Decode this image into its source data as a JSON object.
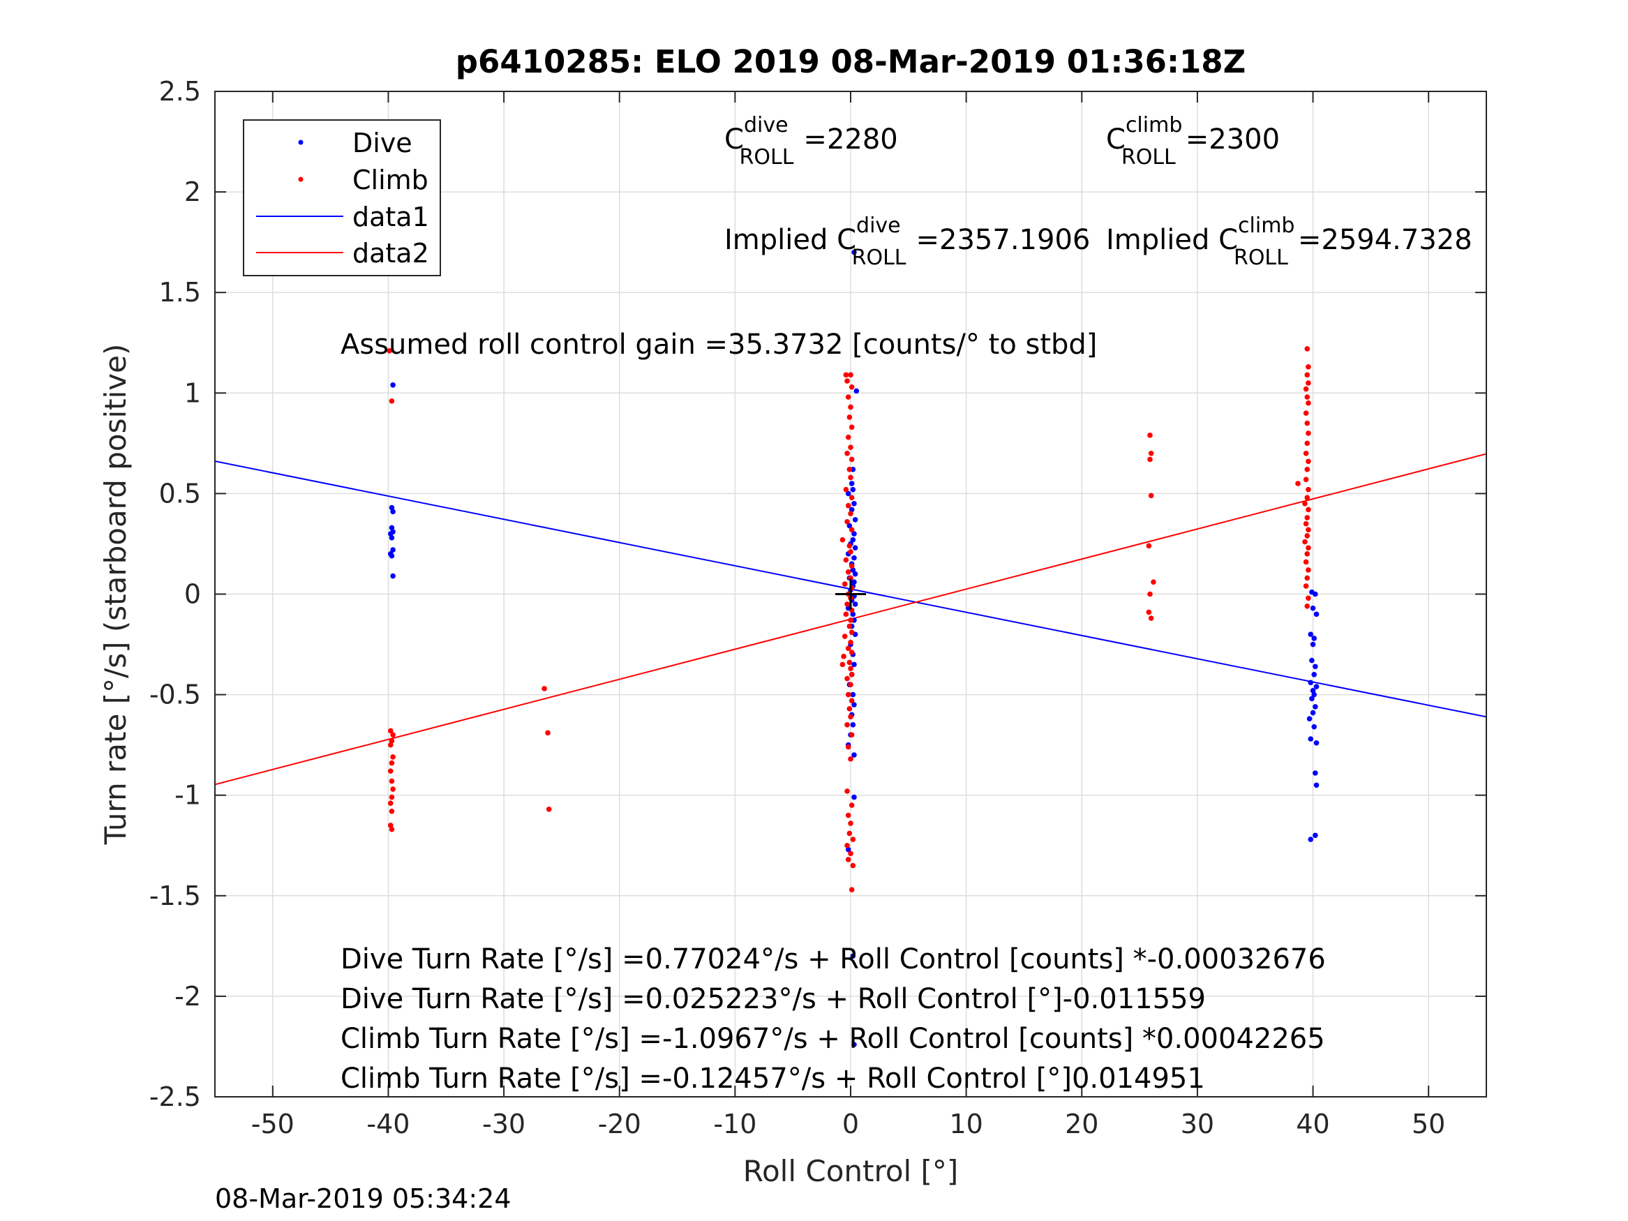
{
  "chart_data": {
    "type": "scatter",
    "title": "p6410285: ELO 2019 08-Mar-2019 01:36:18Z",
    "xlabel": "Roll Control [°]",
    "ylabel": "Turn rate [°/s] (starboard positive)",
    "xlim": [
      -55,
      55
    ],
    "ylim": [
      -2.5,
      2.5
    ],
    "xticks": [
      -50,
      -40,
      -30,
      -20,
      -10,
      0,
      10,
      20,
      30,
      40,
      50
    ],
    "yticks": [
      -2.5,
      -2,
      -1.5,
      -1,
      -0.5,
      0,
      0.5,
      1,
      1.5,
      2,
      2.5
    ],
    "xtick_labels": [
      "-50",
      "-40",
      "-30",
      "-20",
      "-10",
      "0",
      "10",
      "20",
      "30",
      "40",
      "50"
    ],
    "ytick_labels": [
      "-2.5",
      "-2",
      "-1.5",
      "-1",
      "-0.5",
      "0",
      "0.5",
      "1",
      "1.5",
      "2",
      "2.5"
    ],
    "grid": true,
    "legend_position": "top-left",
    "legend": [
      "Dive",
      "Climb",
      "data1",
      "data2"
    ],
    "colors": {
      "dive": "#0000ff",
      "climb": "#ff0000",
      "axes": "#262626",
      "grid": "#dddddd"
    },
    "series": [
      {
        "name": "Dive",
        "kind": "points",
        "color": "#0000ff",
        "points": [
          [
            -39.6,
            1.04
          ],
          [
            -39.7,
            0.43
          ],
          [
            -39.6,
            0.41
          ],
          [
            -39.7,
            0.33
          ],
          [
            -39.6,
            0.31
          ],
          [
            -39.8,
            0.3
          ],
          [
            -39.7,
            0.28
          ],
          [
            -39.6,
            0.22
          ],
          [
            -39.8,
            0.2
          ],
          [
            -39.7,
            0.19
          ],
          [
            -39.6,
            0.09
          ],
          [
            0.3,
            1.7
          ],
          [
            0.5,
            1.01
          ],
          [
            0.2,
            0.62
          ],
          [
            0.1,
            0.55
          ],
          [
            0.2,
            0.52
          ],
          [
            -0.2,
            0.5
          ],
          [
            0.3,
            0.45
          ],
          [
            0.1,
            0.42
          ],
          [
            0.4,
            0.37
          ],
          [
            -0.1,
            0.34
          ],
          [
            0.3,
            0.3
          ],
          [
            0.2,
            0.27
          ],
          [
            0.0,
            0.25
          ],
          [
            0.4,
            0.23
          ],
          [
            -0.2,
            0.2
          ],
          [
            0.3,
            0.18
          ],
          [
            0.1,
            0.15
          ],
          [
            0.2,
            0.12
          ],
          [
            0.4,
            0.1
          ],
          [
            -0.1,
            0.08
          ],
          [
            0.3,
            0.06
          ],
          [
            0.2,
            0.04
          ],
          [
            0.0,
            0.02
          ],
          [
            0.3,
            -0.01
          ],
          [
            0.1,
            -0.03
          ],
          [
            0.4,
            -0.05
          ],
          [
            -0.2,
            -0.07
          ],
          [
            0.2,
            -0.1
          ],
          [
            0.3,
            -0.13
          ],
          [
            0.1,
            -0.16
          ],
          [
            0.4,
            -0.2
          ],
          [
            0.0,
            -0.25
          ],
          [
            0.2,
            -0.3
          ],
          [
            0.3,
            -0.35
          ],
          [
            0.1,
            -0.4
          ],
          [
            -0.1,
            -0.45
          ],
          [
            0.2,
            -0.5
          ],
          [
            0.3,
            -0.55
          ],
          [
            0.1,
            -0.6
          ],
          [
            0.2,
            -0.65
          ],
          [
            0.0,
            -0.7
          ],
          [
            -0.2,
            -0.75
          ],
          [
            0.3,
            -0.8
          ],
          [
            0.3,
            -1.01
          ],
          [
            -0.2,
            -1.27
          ],
          [
            0.2,
            -1.8
          ],
          [
            0.3,
            -2.24
          ],
          [
            39.9,
            0.01
          ],
          [
            40.2,
            0.0
          ],
          [
            40.0,
            -0.07
          ],
          [
            40.3,
            -0.1
          ],
          [
            39.8,
            -0.2
          ],
          [
            40.1,
            -0.22
          ],
          [
            40.0,
            -0.25
          ],
          [
            39.9,
            -0.33
          ],
          [
            40.2,
            -0.36
          ],
          [
            40.1,
            -0.4
          ],
          [
            39.8,
            -0.44
          ],
          [
            40.3,
            -0.46
          ],
          [
            40.0,
            -0.48
          ],
          [
            40.1,
            -0.5
          ],
          [
            39.9,
            -0.52
          ],
          [
            40.2,
            -0.56
          ],
          [
            40.0,
            -0.59
          ],
          [
            39.7,
            -0.62
          ],
          [
            40.1,
            -0.66
          ],
          [
            39.8,
            -0.72
          ],
          [
            40.3,
            -0.74
          ],
          [
            40.2,
            -0.89
          ],
          [
            40.3,
            -0.95
          ],
          [
            39.8,
            -1.22
          ],
          [
            40.2,
            -1.2
          ]
        ]
      },
      {
        "name": "Climb",
        "kind": "points",
        "color": "#ff0000",
        "points": [
          [
            -39.9,
            1.21
          ],
          [
            -39.7,
            0.96
          ],
          [
            -39.8,
            -0.68
          ],
          [
            -39.6,
            -0.7
          ],
          [
            -39.7,
            -0.73
          ],
          [
            -39.8,
            -0.75
          ],
          [
            -39.6,
            -0.81
          ],
          [
            -39.7,
            -0.84
          ],
          [
            -39.8,
            -0.88
          ],
          [
            -39.7,
            -0.93
          ],
          [
            -39.6,
            -0.97
          ],
          [
            -39.7,
            -1.01
          ],
          [
            -39.8,
            -1.04
          ],
          [
            -39.7,
            -1.08
          ],
          [
            -39.8,
            -1.15
          ],
          [
            -39.7,
            -1.17
          ],
          [
            -26.5,
            -0.47
          ],
          [
            -26.2,
            -0.69
          ],
          [
            -26.1,
            -1.07
          ],
          [
            -0.4,
            1.09
          ],
          [
            0.0,
            1.09
          ],
          [
            -0.3,
            1.06
          ],
          [
            0.1,
            1.03
          ],
          [
            -0.2,
            0.98
          ],
          [
            0.0,
            0.93
          ],
          [
            -0.1,
            0.88
          ],
          [
            0.1,
            0.83
          ],
          [
            -0.2,
            0.78
          ],
          [
            0.0,
            0.73
          ],
          [
            -0.3,
            0.7
          ],
          [
            0.1,
            0.67
          ],
          [
            -0.1,
            0.62
          ],
          [
            0.0,
            0.58
          ],
          [
            -0.4,
            0.52
          ],
          [
            0.1,
            0.48
          ],
          [
            -0.2,
            0.44
          ],
          [
            0.0,
            0.4
          ],
          [
            -0.3,
            0.36
          ],
          [
            0.1,
            0.32
          ],
          [
            -0.7,
            0.27
          ],
          [
            -0.1,
            0.24
          ],
          [
            0.0,
            0.21
          ],
          [
            -0.4,
            0.17
          ],
          [
            0.1,
            0.14
          ],
          [
            -0.2,
            0.11
          ],
          [
            0.0,
            0.08
          ],
          [
            -0.5,
            0.05
          ],
          [
            0.1,
            0.03
          ],
          [
            -0.2,
            0.0
          ],
          [
            0.0,
            -0.02
          ],
          [
            -0.3,
            -0.05
          ],
          [
            0.1,
            -0.08
          ],
          [
            -0.4,
            -0.1
          ],
          [
            0.0,
            -0.13
          ],
          [
            -0.1,
            -0.16
          ],
          [
            0.1,
            -0.19
          ],
          [
            -0.5,
            -0.21
          ],
          [
            0.0,
            -0.24
          ],
          [
            -0.2,
            -0.27
          ],
          [
            0.1,
            -0.29
          ],
          [
            -0.6,
            -0.31
          ],
          [
            -0.1,
            -0.34
          ],
          [
            0.0,
            -0.37
          ],
          [
            -0.7,
            -0.35
          ],
          [
            0.1,
            -0.4
          ],
          [
            -0.3,
            -0.42
          ],
          [
            0.0,
            -0.45
          ],
          [
            -0.2,
            -0.5
          ],
          [
            0.1,
            -0.53
          ],
          [
            -0.1,
            -0.57
          ],
          [
            0.0,
            -0.61
          ],
          [
            -0.3,
            -0.65
          ],
          [
            0.1,
            -0.7
          ],
          [
            -0.2,
            -0.76
          ],
          [
            0.0,
            -0.82
          ],
          [
            -0.3,
            -0.98
          ],
          [
            0.1,
            -1.05
          ],
          [
            -0.2,
            -1.1
          ],
          [
            0.0,
            -1.14
          ],
          [
            -0.1,
            -1.19
          ],
          [
            0.2,
            -1.22
          ],
          [
            -0.3,
            -1.25
          ],
          [
            0.0,
            -1.29
          ],
          [
            -0.2,
            -1.32
          ],
          [
            0.2,
            -1.35
          ],
          [
            0.1,
            -1.47
          ],
          [
            25.9,
            0.79
          ],
          [
            26.0,
            0.7
          ],
          [
            25.9,
            0.67
          ],
          [
            26.0,
            0.49
          ],
          [
            25.8,
            0.24
          ],
          [
            26.2,
            0.06
          ],
          [
            25.9,
            0.0
          ],
          [
            25.8,
            -0.09
          ],
          [
            26.0,
            -0.12
          ],
          [
            38.7,
            0.55
          ],
          [
            39.5,
            1.22
          ],
          [
            39.6,
            1.13
          ],
          [
            39.5,
            1.09
          ],
          [
            39.6,
            1.05
          ],
          [
            39.4,
            1.02
          ],
          [
            39.5,
            0.98
          ],
          [
            39.6,
            0.95
          ],
          [
            39.4,
            0.9
          ],
          [
            39.5,
            0.85
          ],
          [
            39.6,
            0.8
          ],
          [
            39.5,
            0.75
          ],
          [
            39.4,
            0.7
          ],
          [
            39.6,
            0.66
          ],
          [
            39.5,
            0.62
          ],
          [
            39.4,
            0.57
          ],
          [
            39.6,
            0.52
          ],
          [
            39.5,
            0.48
          ],
          [
            39.3,
            0.45
          ],
          [
            39.6,
            0.42
          ],
          [
            39.5,
            0.38
          ],
          [
            39.4,
            0.35
          ],
          [
            39.6,
            0.32
          ],
          [
            39.5,
            0.29
          ],
          [
            39.3,
            0.26
          ],
          [
            39.6,
            0.23
          ],
          [
            39.5,
            0.2
          ],
          [
            39.4,
            0.16
          ],
          [
            39.6,
            0.12
          ],
          [
            39.5,
            0.08
          ],
          [
            39.4,
            0.04
          ],
          [
            39.6,
            -0.02
          ],
          [
            39.5,
            -0.06
          ]
        ]
      },
      {
        "name": "data1",
        "kind": "line",
        "color": "#0000ff",
        "x": [
          -55,
          55
        ],
        "y": [
          0.661,
          -0.6105
        ]
      },
      {
        "name": "data2",
        "kind": "line",
        "color": "#ff0000",
        "x": [
          -55,
          55
        ],
        "y": [
          -0.9468,
          0.6976
        ]
      }
    ],
    "marker": {
      "x": 0,
      "y": 0,
      "symbol": "+",
      "color": "#000000"
    },
    "annotations": {
      "c_dive": {
        "base": "C",
        "sup": "dive",
        "sub": "ROLL",
        "value": "=2280"
      },
      "c_climb": {
        "base": "C",
        "sup": "climb",
        "sub": "ROLL",
        "value": "=2300"
      },
      "implied_dive": {
        "base": "Implied C",
        "sup": "dive",
        "sub": "ROLL",
        "value": "=2357.1906"
      },
      "implied_climb": {
        "base": "Implied C",
        "sup": "climb",
        "sub": "ROLL",
        "value": "=2594.7328"
      },
      "gain": "Assumed roll control gain =35.3732 [counts/° to stbd]",
      "fit_lines": [
        "Dive Turn Rate [°/s] =0.77024°/s + Roll Control [counts] *-0.00032676",
        "Dive Turn Rate [°/s] =0.025223°/s + Roll Control [°]-0.011559",
        "Climb Turn Rate [°/s] =-1.0967°/s + Roll Control [counts] *0.00042265",
        "Climb Turn Rate [°/s] =-0.12457°/s + Roll Control [°]0.014951"
      ]
    },
    "timestamp": "08-Mar-2019 05:34:24"
  }
}
